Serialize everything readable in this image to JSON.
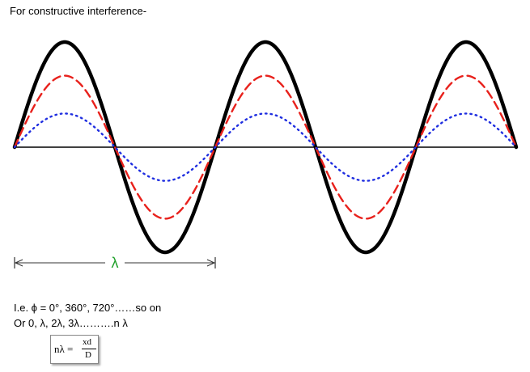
{
  "heading": "For constructive interference-",
  "lambda_label": "λ",
  "lines": {
    "line1": "I.e. ϕ = 0°, 360°, 720°……so on",
    "line2": "Or 0, λ, 2λ, 3λ……….n λ"
  },
  "formula": {
    "lhs": "nλ =",
    "numerator": "xd",
    "denominator": "D"
  },
  "waves": {
    "cycles": 2.5,
    "series": [
      {
        "style": "solid",
        "color": "#000000",
        "amplitude": 1.0
      },
      {
        "style": "dashed",
        "color": "#e8211c",
        "amplitude": 0.68
      },
      {
        "style": "dotted",
        "color": "#1f2ee0",
        "amplitude": 0.32
      }
    ]
  },
  "colors": {
    "lambda": "#1fa02a",
    "axis": "#000000",
    "wavelength_marker": "#333333"
  }
}
